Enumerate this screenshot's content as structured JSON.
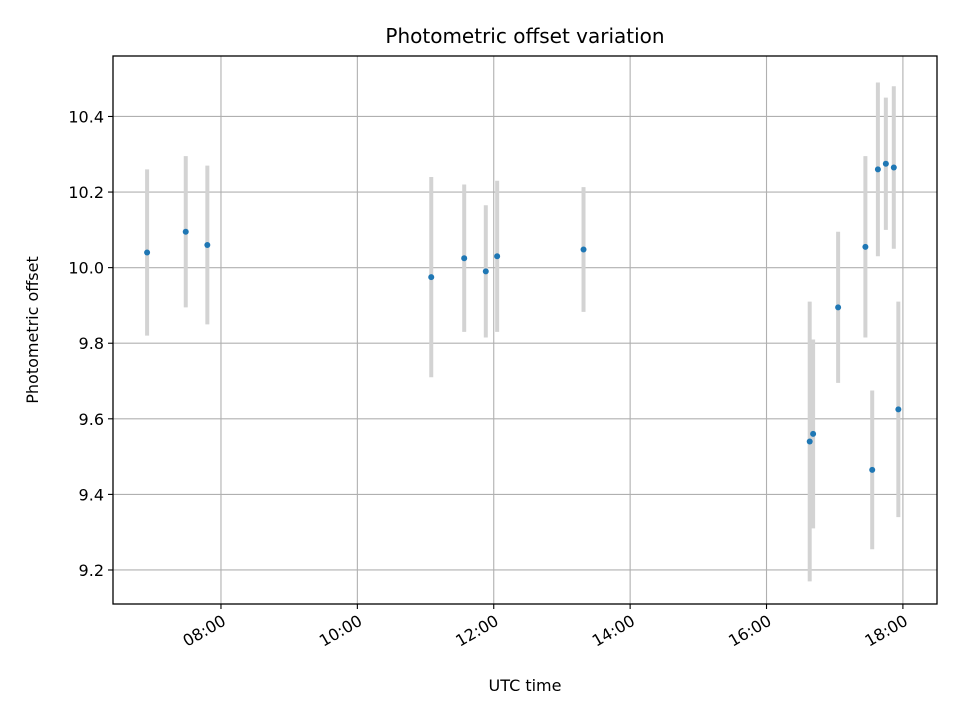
{
  "chart_data": {
    "type": "scatter",
    "title": "Photometric offset variation",
    "xlabel": "UTC time",
    "ylabel": "Photometric offset",
    "x_axis_type": "time",
    "xlim": [
      "06:25",
      "18:30"
    ],
    "ylim": [
      9.11,
      10.56
    ],
    "x_ticks": [
      "08:00",
      "10:00",
      "12:00",
      "14:00",
      "16:00",
      "18:00"
    ],
    "y_ticks": [
      9.2,
      9.4,
      9.6,
      9.8,
      10.0,
      10.2,
      10.4
    ],
    "y_tick_labels": [
      "9.2",
      "9.4",
      "9.6",
      "9.8",
      "10.0",
      "10.2",
      "10.4"
    ],
    "grid": true,
    "marker_color": "#1f77b4",
    "errorbar_color": "#d3d3d3",
    "points": [
      {
        "time": "06:55",
        "value": 10.04,
        "error": 0.22
      },
      {
        "time": "07:29",
        "value": 10.095,
        "error": 0.2
      },
      {
        "time": "07:48",
        "value": 10.06,
        "error": 0.21
      },
      {
        "time": "11:05",
        "value": 9.975,
        "error": 0.265
      },
      {
        "time": "11:34",
        "value": 10.025,
        "error": 0.195
      },
      {
        "time": "11:53",
        "value": 9.99,
        "error": 0.175
      },
      {
        "time": "12:03",
        "value": 10.03,
        "error": 0.2
      },
      {
        "time": "13:19",
        "value": 10.048,
        "error": 0.165
      },
      {
        "time": "16:38",
        "value": 9.54,
        "error": 0.37
      },
      {
        "time": "16:41",
        "value": 9.56,
        "error": 0.25
      },
      {
        "time": "17:03",
        "value": 9.895,
        "error": 0.2
      },
      {
        "time": "17:27",
        "value": 10.055,
        "error": 0.24
      },
      {
        "time": "17:33",
        "value": 9.465,
        "error": 0.21
      },
      {
        "time": "17:38",
        "value": 10.26,
        "error": 0.23
      },
      {
        "time": "17:45",
        "value": 10.275,
        "error": 0.175
      },
      {
        "time": "17:52",
        "value": 10.265,
        "error": 0.215
      },
      {
        "time": "17:56",
        "value": 9.625,
        "error": 0.285
      }
    ]
  }
}
